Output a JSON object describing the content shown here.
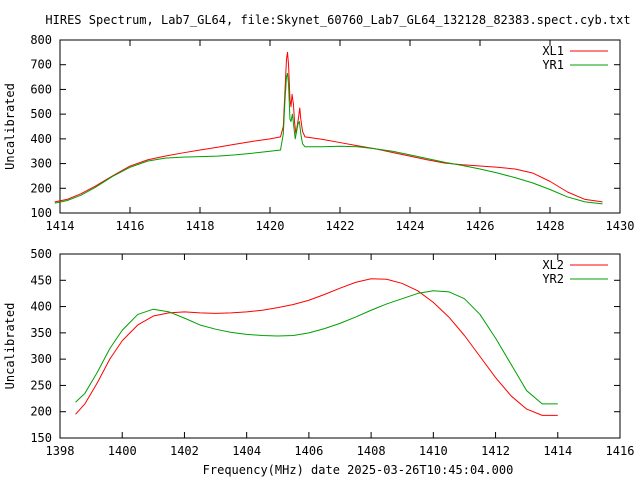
{
  "chart_data": [
    {
      "type": "line",
      "title": "HIRES Spectrum, Lab7_GL64, file:Skynet_60760_Lab7_GL64_132128_82383.spect.cyb.txt",
      "xlabel": "",
      "ylabel": "Uncalibrated",
      "xlim": [
        1414,
        1430
      ],
      "ylim": [
        100,
        800
      ],
      "x_ticks": [
        1414,
        1416,
        1418,
        1420,
        1422,
        1424,
        1426,
        1428,
        1430
      ],
      "y_ticks": [
        100,
        200,
        300,
        400,
        500,
        600,
        700,
        800
      ],
      "grid": false,
      "legend_position": "top-right",
      "series": [
        {
          "name": "XL1",
          "color": "#ff0000",
          "points": [
            [
              1413.85,
              145
            ],
            [
              1414.2,
              155
            ],
            [
              1414.6,
              178
            ],
            [
              1415.0,
              208
            ],
            [
              1415.5,
              250
            ],
            [
              1416.0,
              290
            ],
            [
              1416.5,
              315
            ],
            [
              1417.0,
              330
            ],
            [
              1417.5,
              343
            ],
            [
              1418.0,
              355
            ],
            [
              1418.5,
              366
            ],
            [
              1419.0,
              378
            ],
            [
              1419.5,
              390
            ],
            [
              1420.0,
              400
            ],
            [
              1420.3,
              408
            ],
            [
              1420.38,
              450
            ],
            [
              1420.43,
              600
            ],
            [
              1420.47,
              720
            ],
            [
              1420.5,
              750
            ],
            [
              1420.53,
              700
            ],
            [
              1420.57,
              560
            ],
            [
              1420.6,
              530
            ],
            [
              1420.63,
              580
            ],
            [
              1420.67,
              540
            ],
            [
              1420.7,
              470
            ],
            [
              1420.74,
              420
            ],
            [
              1420.78,
              455
            ],
            [
              1420.82,
              490
            ],
            [
              1420.85,
              525
            ],
            [
              1420.88,
              480
            ],
            [
              1420.93,
              430
            ],
            [
              1421.0,
              408
            ],
            [
              1421.5,
              398
            ],
            [
              1422.0,
              385
            ],
            [
              1422.5,
              372
            ],
            [
              1423.0,
              360
            ],
            [
              1423.5,
              345
            ],
            [
              1424.0,
              330
            ],
            [
              1424.5,
              315
            ],
            [
              1425.0,
              302
            ],
            [
              1425.5,
              295
            ],
            [
              1426.0,
              290
            ],
            [
              1426.5,
              285
            ],
            [
              1427.0,
              278
            ],
            [
              1427.5,
              262
            ],
            [
              1428.0,
              228
            ],
            [
              1428.5,
              185
            ],
            [
              1429.0,
              155
            ],
            [
              1429.5,
              145
            ]
          ]
        },
        {
          "name": "YR1",
          "color": "#00a000",
          "points": [
            [
              1413.85,
              140
            ],
            [
              1414.2,
              150
            ],
            [
              1414.6,
              172
            ],
            [
              1415.0,
              203
            ],
            [
              1415.5,
              248
            ],
            [
              1416.0,
              285
            ],
            [
              1416.5,
              310
            ],
            [
              1417.0,
              322
            ],
            [
              1417.5,
              326
            ],
            [
              1418.0,
              328
            ],
            [
              1418.5,
              330
            ],
            [
              1419.0,
              335
            ],
            [
              1419.5,
              342
            ],
            [
              1420.0,
              350
            ],
            [
              1420.3,
              355
            ],
            [
              1420.38,
              420
            ],
            [
              1420.43,
              560
            ],
            [
              1420.47,
              650
            ],
            [
              1420.5,
              665
            ],
            [
              1420.53,
              620
            ],
            [
              1420.57,
              480
            ],
            [
              1420.6,
              470
            ],
            [
              1420.64,
              500
            ],
            [
              1420.68,
              450
            ],
            [
              1420.72,
              400
            ],
            [
              1420.76,
              430
            ],
            [
              1420.8,
              460
            ],
            [
              1420.84,
              470
            ],
            [
              1420.88,
              420
            ],
            [
              1420.93,
              380
            ],
            [
              1421.0,
              368
            ],
            [
              1421.5,
              368
            ],
            [
              1422.0,
              370
            ],
            [
              1422.5,
              368
            ],
            [
              1423.0,
              360
            ],
            [
              1423.5,
              350
            ],
            [
              1424.0,
              335
            ],
            [
              1424.5,
              320
            ],
            [
              1425.0,
              305
            ],
            [
              1425.5,
              292
            ],
            [
              1426.0,
              278
            ],
            [
              1426.5,
              262
            ],
            [
              1427.0,
              243
            ],
            [
              1427.5,
              222
            ],
            [
              1428.0,
              195
            ],
            [
              1428.5,
              165
            ],
            [
              1429.0,
              145
            ],
            [
              1429.5,
              137
            ]
          ]
        }
      ]
    },
    {
      "type": "line",
      "title": "",
      "xlabel": "Frequency(MHz) date 2025-03-26T10:45:04.000",
      "ylabel": "Uncalibrated",
      "xlim": [
        1398,
        1416
      ],
      "ylim": [
        150,
        500
      ],
      "x_ticks": [
        1398,
        1400,
        1402,
        1404,
        1406,
        1408,
        1410,
        1412,
        1414,
        1416
      ],
      "y_ticks": [
        150,
        200,
        250,
        300,
        350,
        400,
        450,
        500
      ],
      "grid": false,
      "legend_position": "top-right",
      "series": [
        {
          "name": "XL2",
          "color": "#ff0000",
          "points": [
            [
              1398.5,
              195
            ],
            [
              1398.8,
              215
            ],
            [
              1399.2,
              255
            ],
            [
              1399.6,
              300
            ],
            [
              1400.0,
              335
            ],
            [
              1400.5,
              365
            ],
            [
              1401.0,
              382
            ],
            [
              1401.5,
              388
            ],
            [
              1402.0,
              390
            ],
            [
              1402.5,
              388
            ],
            [
              1403.0,
              387
            ],
            [
              1403.5,
              388
            ],
            [
              1404.0,
              390
            ],
            [
              1404.5,
              393
            ],
            [
              1405.0,
              398
            ],
            [
              1405.5,
              404
            ],
            [
              1406.0,
              412
            ],
            [
              1406.5,
              423
            ],
            [
              1407.0,
              435
            ],
            [
              1407.5,
              446
            ],
            [
              1408.0,
              453
            ],
            [
              1408.5,
              452
            ],
            [
              1409.0,
              444
            ],
            [
              1409.5,
              430
            ],
            [
              1410.0,
              408
            ],
            [
              1410.5,
              380
            ],
            [
              1411.0,
              345
            ],
            [
              1411.5,
              305
            ],
            [
              1412.0,
              265
            ],
            [
              1412.5,
              230
            ],
            [
              1413.0,
              205
            ],
            [
              1413.5,
              193
            ],
            [
              1414.0,
              193
            ]
          ]
        },
        {
          "name": "YR2",
          "color": "#00a000",
          "points": [
            [
              1398.5,
              218
            ],
            [
              1398.8,
              235
            ],
            [
              1399.2,
              275
            ],
            [
              1399.6,
              320
            ],
            [
              1400.0,
              355
            ],
            [
              1400.5,
              385
            ],
            [
              1401.0,
              395
            ],
            [
              1401.5,
              390
            ],
            [
              1402.0,
              378
            ],
            [
              1402.5,
              365
            ],
            [
              1403.0,
              357
            ],
            [
              1403.5,
              351
            ],
            [
              1404.0,
              347
            ],
            [
              1404.5,
              345
            ],
            [
              1405.0,
              344
            ],
            [
              1405.5,
              345
            ],
            [
              1406.0,
              350
            ],
            [
              1406.5,
              358
            ],
            [
              1407.0,
              368
            ],
            [
              1407.5,
              380
            ],
            [
              1408.0,
              393
            ],
            [
              1408.5,
              405
            ],
            [
              1409.0,
              415
            ],
            [
              1409.5,
              425
            ],
            [
              1410.0,
              430
            ],
            [
              1410.5,
              428
            ],
            [
              1411.0,
              415
            ],
            [
              1411.5,
              385
            ],
            [
              1412.0,
              340
            ],
            [
              1412.5,
              290
            ],
            [
              1413.0,
              240
            ],
            [
              1413.5,
              215
            ],
            [
              1414.0,
              215
            ]
          ]
        }
      ]
    }
  ]
}
